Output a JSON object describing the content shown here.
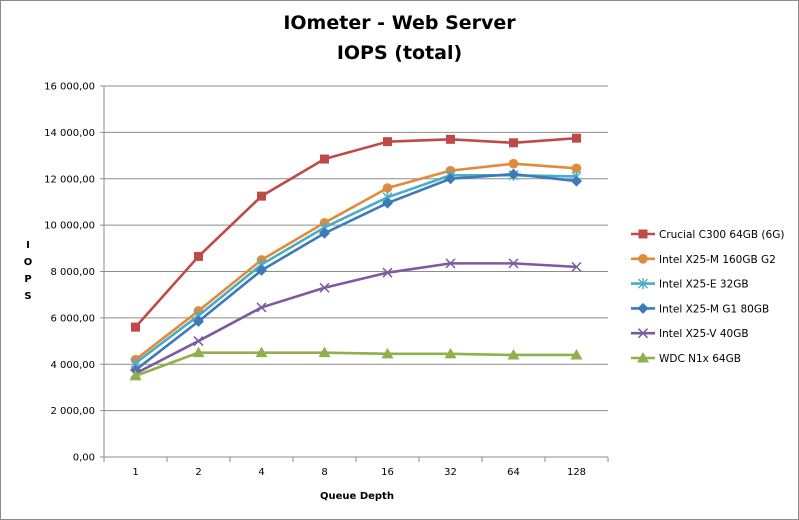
{
  "chart_data": {
    "type": "line",
    "title": "IOmeter - Web Server",
    "subtitle": "IOPS (total)",
    "xlabel": "Queue Depth",
    "ylabel": "IOPS",
    "categories": [
      "1",
      "2",
      "4",
      "8",
      "16",
      "32",
      "64",
      "128"
    ],
    "ylim": [
      0,
      16000
    ],
    "ytick_step": 2000,
    "ytick_labels": [
      "0,00",
      "2 000,00",
      "4 000,00",
      "6 000,00",
      "8 000,00",
      "10 000,00",
      "12 000,00",
      "14 000,00",
      "16 000,00"
    ],
    "grid": "horizontal",
    "legend_position": "right",
    "series": [
      {
        "name": "Crucial C300 64GB (6G)",
        "color": "#be4b48",
        "marker": "square",
        "values": [
          5600,
          8650,
          11250,
          12850,
          13600,
          13700,
          13550,
          13750
        ]
      },
      {
        "name": "Intel X25-M 160GB G2",
        "color": "#e08a3c",
        "marker": "circle",
        "values": [
          4200,
          6300,
          8500,
          10100,
          11600,
          12350,
          12650,
          12450
        ]
      },
      {
        "name": "Intel X25-E 32GB",
        "color": "#4aacc5",
        "marker": "star",
        "values": [
          4050,
          6100,
          8300,
          9900,
          11200,
          12150,
          12150,
          12100
        ]
      },
      {
        "name": "Intel X25-M G1 80GB",
        "color": "#3c7ab8",
        "marker": "diamond",
        "values": [
          3750,
          5850,
          8050,
          9650,
          10950,
          12000,
          12200,
          11900
        ]
      },
      {
        "name": "Intel X25-V 40GB",
        "color": "#7d5a9e",
        "marker": "x",
        "values": [
          3600,
          5000,
          6450,
          7300,
          7950,
          8350,
          8350,
          8200
        ]
      },
      {
        "name": "WDC N1x 64GB",
        "color": "#8fb04a",
        "marker": "triangle",
        "values": [
          3500,
          4500,
          4500,
          4500,
          4450,
          4450,
          4400,
          4400
        ]
      }
    ]
  }
}
